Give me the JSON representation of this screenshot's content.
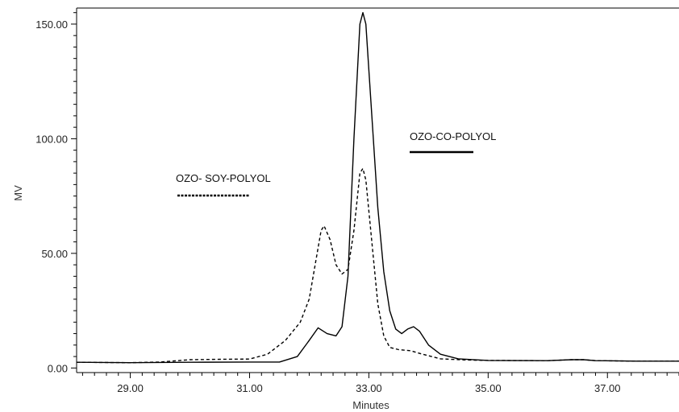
{
  "chart_data": {
    "type": "line",
    "title": "",
    "xlabel": "Minutes",
    "ylabel": "MV",
    "xlim": [
      28.1,
      38.2
    ],
    "ylim": [
      -2,
      157
    ],
    "x_ticks": [
      {
        "value": 29,
        "label": "29.00"
      },
      {
        "value": 31,
        "label": "31.00"
      },
      {
        "value": 33,
        "label": "33.00"
      },
      {
        "value": 35,
        "label": "35.00"
      },
      {
        "value": 37,
        "label": "37.00"
      }
    ],
    "y_ticks": [
      {
        "value": 0,
        "label": "0.00"
      },
      {
        "value": 50,
        "label": "50.00"
      },
      {
        "value": 100,
        "label": "100.00"
      },
      {
        "value": 150,
        "label": "150.00"
      }
    ],
    "series": [
      {
        "name": "OZO-CO-POLYOL",
        "style": "solid",
        "color": "#000000",
        "points": [
          [
            28.1,
            2.5
          ],
          [
            29,
            2.3
          ],
          [
            30,
            2.5
          ],
          [
            31,
            2.6
          ],
          [
            31.5,
            2.6
          ],
          [
            31.8,
            5
          ],
          [
            32,
            12
          ],
          [
            32.15,
            17.5
          ],
          [
            32.3,
            15
          ],
          [
            32.45,
            14
          ],
          [
            32.55,
            18
          ],
          [
            32.65,
            40
          ],
          [
            32.75,
            100
          ],
          [
            32.85,
            150
          ],
          [
            32.9,
            155
          ],
          [
            32.95,
            150
          ],
          [
            33.05,
            110
          ],
          [
            33.15,
            70
          ],
          [
            33.25,
            42
          ],
          [
            33.35,
            25
          ],
          [
            33.45,
            17
          ],
          [
            33.55,
            15
          ],
          [
            33.65,
            17
          ],
          [
            33.75,
            18
          ],
          [
            33.85,
            16
          ],
          [
            34,
            10
          ],
          [
            34.2,
            6
          ],
          [
            34.5,
            4
          ],
          [
            35,
            3.3
          ],
          [
            36,
            3.2
          ],
          [
            36.4,
            3.6
          ],
          [
            36.6,
            3.6
          ],
          [
            36.8,
            3.2
          ],
          [
            37.5,
            3
          ],
          [
            38.2,
            3
          ]
        ]
      },
      {
        "name": "OZO- SOY-POLYOL",
        "style": "dashed",
        "color": "#000000",
        "points": [
          [
            28.1,
            2.5
          ],
          [
            29,
            2.3
          ],
          [
            29.5,
            2.6
          ],
          [
            30,
            3.6
          ],
          [
            30.5,
            3.8
          ],
          [
            31,
            3.9
          ],
          [
            31.3,
            6
          ],
          [
            31.6,
            12
          ],
          [
            31.85,
            20
          ],
          [
            32,
            30
          ],
          [
            32.1,
            45
          ],
          [
            32.2,
            60
          ],
          [
            32.25,
            62
          ],
          [
            32.35,
            56
          ],
          [
            32.45,
            45
          ],
          [
            32.55,
            41
          ],
          [
            32.65,
            43
          ],
          [
            32.75,
            60
          ],
          [
            32.85,
            85
          ],
          [
            32.9,
            87
          ],
          [
            32.95,
            82
          ],
          [
            33.05,
            55
          ],
          [
            33.15,
            28
          ],
          [
            33.25,
            14
          ],
          [
            33.35,
            9
          ],
          [
            33.5,
            8
          ],
          [
            33.7,
            7.5
          ],
          [
            33.9,
            6
          ],
          [
            34.2,
            4
          ],
          [
            34.6,
            3.5
          ],
          [
            35,
            3.3
          ],
          [
            36,
            3.2
          ],
          [
            36.4,
            3.6
          ],
          [
            36.6,
            3.6
          ],
          [
            36.8,
            3.2
          ],
          [
            37.5,
            3
          ],
          [
            38.2,
            3
          ]
        ]
      }
    ],
    "legend": [
      {
        "label": "OZO- SOY-POLYOL",
        "style": "dashed"
      },
      {
        "label": "OZO-CO-POLYOL",
        "style": "solid"
      }
    ],
    "grid": false
  }
}
